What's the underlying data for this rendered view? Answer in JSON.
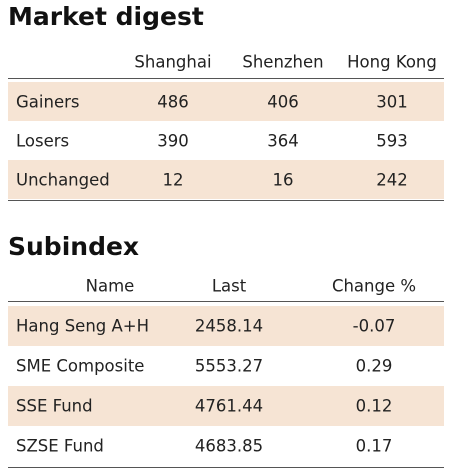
{
  "sections": [
    {
      "title": "Market digest",
      "columns": [
        "Shanghai",
        "Shenzhen",
        "Hong Kong"
      ],
      "rows": [
        {
          "label": "Gainers",
          "cells": [
            486,
            406,
            301
          ]
        },
        {
          "label": "Losers",
          "cells": [
            390,
            364,
            593
          ]
        },
        {
          "label": "Unchanged",
          "cells": [
            12,
            16,
            242
          ]
        }
      ]
    },
    {
      "title": "Subindex",
      "columns": [
        "Name",
        "Last",
        "Change %"
      ],
      "rows": [
        {
          "label": "Hang Seng A+H",
          "cells": [
            2458.14,
            -0.07
          ]
        },
        {
          "label": "SME Composite",
          "cells": [
            5553.27,
            0.29
          ]
        },
        {
          "label": "SSE Fund",
          "cells": [
            4761.44,
            0.12
          ]
        },
        {
          "label": "SZSE Fund",
          "cells": [
            4683.85,
            0.17
          ]
        }
      ]
    }
  ]
}
